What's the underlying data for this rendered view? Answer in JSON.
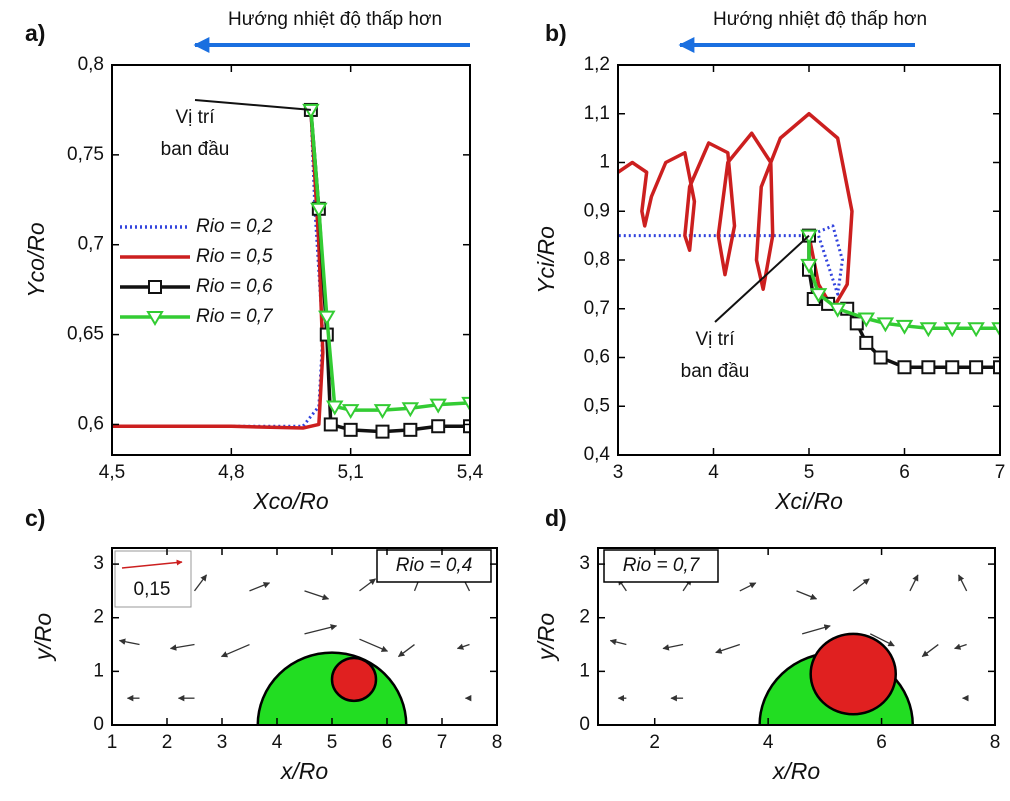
{
  "chart_data": [
    {
      "type": "line",
      "panel": "a)",
      "header": "Hướng nhiệt độ thấp hơn",
      "note": [
        "Vị trí",
        "ban đầu"
      ],
      "x_label": "Xco/Ro",
      "y_label": "Yco/Ro",
      "legend": true,
      "xlim": [
        4.5,
        5.4
      ],
      "xticks": [
        {
          "value": 4.5,
          "label": "4,5"
        },
        {
          "value": 4.8,
          "label": "4,8"
        },
        {
          "value": 5.1,
          "label": "5,1"
        },
        {
          "value": 5.4,
          "label": "5,4"
        }
      ],
      "ylim": [
        0.583,
        0.8
      ],
      "yticks": [
        {
          "value": 0.6,
          "label": "0,6"
        },
        {
          "value": 0.65,
          "label": "0,65"
        },
        {
          "value": 0.7,
          "label": "0,7"
        },
        {
          "value": 0.75,
          "label": "0,75"
        },
        {
          "value": 0.8,
          "label": "0,8"
        }
      ],
      "series": [
        {
          "name": "Rio = 0,2",
          "color": "#3344dd",
          "style": "dotted",
          "marker": "none",
          "x": [
            5.0,
            5.01,
            5.03,
            5.02,
            4.98,
            4.8,
            4.5
          ],
          "values": [
            0.775,
            0.72,
            0.65,
            0.61,
            0.599,
            0.599,
            0.599
          ]
        },
        {
          "name": "Rio = 0,5",
          "color": "#cc1f1f",
          "style": "solid",
          "marker": "none",
          "x": [
            5.0,
            5.02,
            5.03,
            5.02,
            4.98,
            4.8,
            4.5
          ],
          "values": [
            0.775,
            0.7,
            0.64,
            0.6,
            0.598,
            0.599,
            0.599
          ]
        },
        {
          "name": "Rio = 0,6",
          "color": "#111111",
          "style": "solid",
          "marker": "square",
          "x": [
            5.0,
            5.02,
            5.04,
            5.05,
            5.1,
            5.18,
            5.25,
            5.32,
            5.4
          ],
          "values": [
            0.775,
            0.72,
            0.65,
            0.6,
            0.597,
            0.596,
            0.597,
            0.599,
            0.599
          ]
        },
        {
          "name": "Rio = 0,7",
          "color": "#33cc33",
          "style": "solid",
          "marker": "triangle",
          "x": [
            5.0,
            5.02,
            5.04,
            5.06,
            5.1,
            5.18,
            5.25,
            5.32,
            5.4
          ],
          "values": [
            0.775,
            0.72,
            0.66,
            0.61,
            0.608,
            0.608,
            0.609,
            0.611,
            0.612
          ]
        }
      ]
    },
    {
      "type": "line",
      "panel": "b)",
      "header": "Hướng nhiệt độ thấp hơn",
      "note": [
        "Vị trí",
        "ban đầu"
      ],
      "x_label": "Xci/Ro",
      "y_label": "Yci/Ro",
      "legend": false,
      "xlim": [
        3,
        7
      ],
      "xticks": [
        3,
        4,
        5,
        6,
        7
      ],
      "ylim": [
        0.4,
        1.2
      ],
      "yticks": [
        {
          "value": 0.4,
          "label": "0,4"
        },
        {
          "value": 0.5,
          "label": "0,5"
        },
        {
          "value": 0.6,
          "label": "0,6"
        },
        {
          "value": 0.7,
          "label": "0,7"
        },
        {
          "value": 0.8,
          "label": "0,8"
        },
        {
          "value": 0.9,
          "label": "0,9"
        },
        1,
        {
          "value": 1.1,
          "label": "1,1"
        },
        {
          "value": 1.2,
          "label": "1,2"
        }
      ],
      "series": [
        {
          "name": "Rio = 0,2",
          "color": "#3344dd",
          "style": "dotted",
          "marker": "none",
          "x": [
            5.0,
            5.25,
            5.35,
            5.3,
            5.1,
            4.5,
            4.0,
            3.5,
            3.0
          ],
          "values": [
            0.85,
            0.87,
            0.8,
            0.73,
            0.85,
            0.85,
            0.85,
            0.85,
            0.85
          ]
        },
        {
          "name": "Rio = 0,5",
          "color": "#cc1f1f",
          "style": "solid",
          "marker": "none",
          "x": [
            5.0,
            5.1,
            5.25,
            5.4,
            5.45,
            5.3,
            5.0,
            4.7,
            4.5,
            4.45,
            4.52,
            4.62,
            4.6,
            4.4,
            4.15,
            4.05,
            4.12,
            4.22,
            4.15,
            3.95,
            3.75,
            3.7,
            3.75,
            3.8,
            3.7,
            3.5,
            3.35,
            3.28,
            3.25,
            3.3,
            3.15,
            3.0
          ],
          "values": [
            0.85,
            0.75,
            0.7,
            0.75,
            0.9,
            1.05,
            1.1,
            1.05,
            0.95,
            0.8,
            0.74,
            0.85,
            1.0,
            1.06,
            1.0,
            0.85,
            0.77,
            0.87,
            1.02,
            1.04,
            0.95,
            0.85,
            0.82,
            0.92,
            1.02,
            1.0,
            0.93,
            0.87,
            0.9,
            0.98,
            1.0,
            0.98
          ]
        },
        {
          "name": "Rio = 0,6",
          "color": "#111111",
          "style": "solid",
          "marker": "square",
          "x": [
            5.0,
            5.0,
            5.05,
            5.2,
            5.4,
            5.5,
            5.6,
            5.75,
            6.0,
            6.25,
            6.5,
            6.75,
            7.0
          ],
          "values": [
            0.85,
            0.78,
            0.72,
            0.71,
            0.7,
            0.67,
            0.63,
            0.6,
            0.58,
            0.58,
            0.58,
            0.58,
            0.58
          ]
        },
        {
          "name": "Rio = 0,7",
          "color": "#33cc33",
          "style": "solid",
          "marker": "triangle",
          "x": [
            5.0,
            5.0,
            5.1,
            5.3,
            5.6,
            5.8,
            6.0,
            6.25,
            6.5,
            6.75,
            7.0
          ],
          "values": [
            0.85,
            0.79,
            0.73,
            0.7,
            0.68,
            0.67,
            0.665,
            0.66,
            0.66,
            0.66,
            0.66
          ]
        }
      ]
    },
    {
      "type": "quiver",
      "panel": "c)",
      "x_label": "x/Ro",
      "y_label": "y/Ro",
      "label_box": "Rio = 0,4",
      "reference_vector": {
        "value": 0.15,
        "label": "0,15"
      },
      "xlim": [
        1,
        8
      ],
      "xticks": [
        1,
        2,
        3,
        4,
        5,
        6,
        7,
        8
      ],
      "ylim": [
        0,
        3.3
      ],
      "yticks": [
        0,
        1,
        2,
        3
      ],
      "circles": [
        {
          "cx": 5.0,
          "cy": 0,
          "r": 1.35,
          "color": "#22dd22"
        },
        {
          "cx": 5.4,
          "cy": 0.85,
          "r": 0.4,
          "color": "#e02020"
        }
      ],
      "vectors": {
        "x": [
          1.5,
          2.5,
          1.5,
          2.5,
          3.5,
          1.5,
          2.5,
          3.5,
          4.5,
          5.5,
          6.5,
          7.5,
          6.5,
          7.5,
          7.5,
          4.5,
          5.5
        ],
        "y": [
          0.5,
          0.5,
          1.5,
          1.5,
          1.5,
          2.5,
          2.5,
          2.5,
          2.5,
          2.5,
          2.5,
          2.5,
          1.5,
          1.5,
          0.5,
          1.7,
          1.6
        ],
        "u": [
          -0.03,
          -0.04,
          -0.05,
          -0.06,
          -0.07,
          -0.02,
          0.03,
          0.05,
          0.06,
          0.04,
          0.02,
          -0.02,
          -0.04,
          -0.03,
          -0.01,
          0.08,
          0.07
        ],
        "v": [
          0,
          0,
          0.01,
          -0.01,
          -0.03,
          0.03,
          0.04,
          0.02,
          -0.02,
          0.03,
          0.05,
          0.04,
          -0.03,
          -0.01,
          0,
          0.02,
          -0.03
        ]
      }
    },
    {
      "type": "quiver",
      "panel": "d)",
      "x_label": "x/Ro",
      "y_label": "y/Ro",
      "label_box": "Rio = 0,7",
      "xlim": [
        1,
        8
      ],
      "xticks": [
        2,
        4,
        6,
        8
      ],
      "ylim": [
        0,
        3.3
      ],
      "yticks": [
        0,
        1,
        2,
        3
      ],
      "circles": [
        {
          "cx": 5.2,
          "cy": 0,
          "r": 1.35,
          "color": "#22dd22"
        },
        {
          "cx": 5.5,
          "cy": 0.95,
          "r": 0.75,
          "color": "#e02020"
        }
      ],
      "vectors": {
        "x": [
          1.5,
          2.5,
          1.5,
          2.5,
          3.5,
          1.5,
          2.5,
          3.5,
          4.5,
          5.5,
          6.5,
          7.5,
          7.0,
          7.5,
          7.5,
          4.6,
          5.8
        ],
        "y": [
          0.5,
          0.5,
          1.5,
          1.5,
          1.5,
          2.5,
          2.5,
          2.5,
          2.5,
          2.5,
          2.5,
          2.5,
          1.5,
          1.5,
          0.5,
          1.7,
          1.7
        ],
        "u": [
          -0.02,
          -0.03,
          -0.04,
          -0.05,
          -0.06,
          -0.02,
          0.02,
          0.04,
          0.05,
          0.04,
          0.02,
          -0.02,
          -0.04,
          -0.03,
          -0.01,
          0.07,
          0.06
        ],
        "v": [
          0,
          0,
          0.01,
          -0.01,
          -0.02,
          0.03,
          0.03,
          0.02,
          -0.02,
          0.03,
          0.04,
          0.04,
          -0.03,
          -0.01,
          0,
          0.02,
          -0.03
        ]
      }
    }
  ]
}
